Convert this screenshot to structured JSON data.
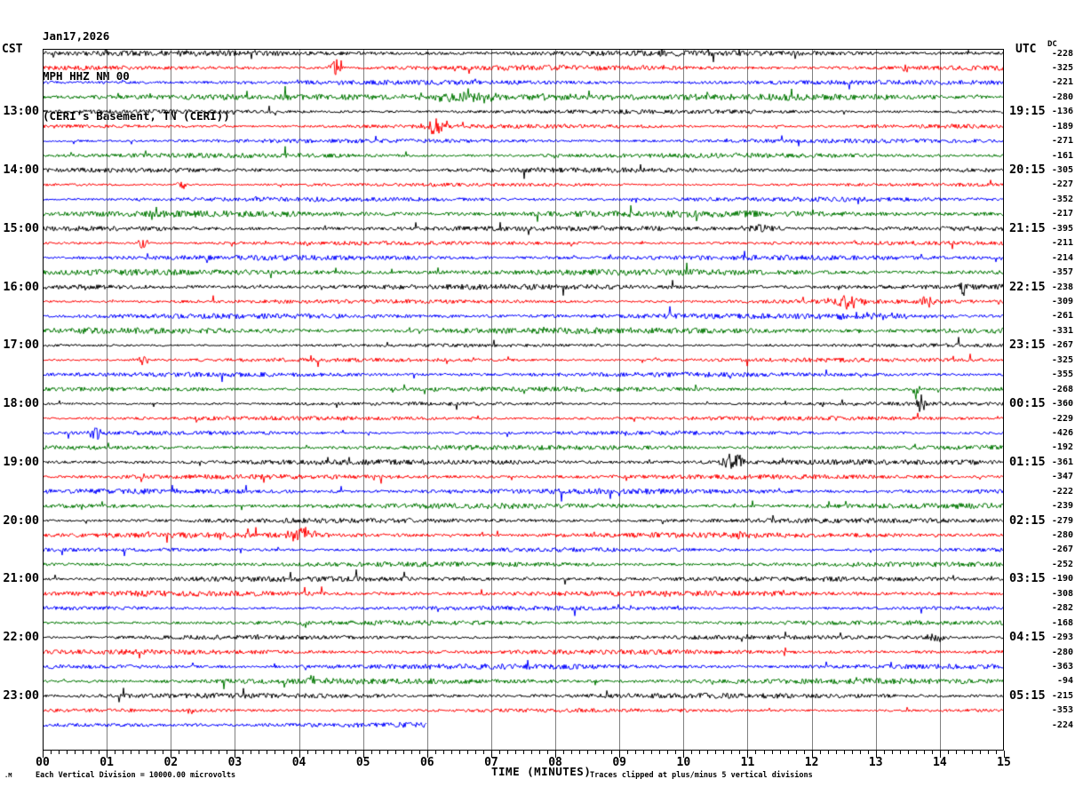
{
  "title": {
    "date": "Jan17,2026",
    "station": "MPH HHZ NM 00",
    "location": "(CERI's Basement, TN (CERI))"
  },
  "axes": {
    "left_header": "CST",
    "right_header": "UTC",
    "dc_header": "DC",
    "x_title": "TIME (MINUTES)",
    "x_ticks": [
      "00",
      "01",
      "02",
      "03",
      "04",
      "05",
      "06",
      "07",
      "08",
      "09",
      "10",
      "11",
      "12",
      "13",
      "14",
      "15"
    ]
  },
  "footer": {
    "corner_mark": ".M",
    "scale_note": "Each Vertical Division = 10000.00 microvolts",
    "clip_note": "Traces clipped at plus/minus 5 vertical divisions"
  },
  "colors": {
    "black": "#000000",
    "red": "#ff0000",
    "blue": "#0000ff",
    "green": "#007700",
    "grid": "#808080",
    "axis": "#000000"
  },
  "chart_data": {
    "type": "line",
    "title": "MPH HHZ NM 00 helicorder, CERI's Basement, TN (CERI), Jan17,2026",
    "xlabel": "TIME (MINUTES)",
    "x_range": [
      0,
      15
    ],
    "minutes_per_row": 15,
    "minor_ticks_per_minute": 8,
    "grid": "vertical minute lines",
    "note": "Continuous seismic noise traces; waveform wiggles are stochastic. Rows cycle black/red/blue/green, 15 minutes per row. CST label = row start local time, UTC label = row end time, dc = DC offset per trace.",
    "rows": [
      {
        "color": "black",
        "cst": "",
        "utc": "",
        "dc": "-228"
      },
      {
        "color": "red",
        "cst": "",
        "utc": "",
        "dc": "-325"
      },
      {
        "color": "blue",
        "cst": "",
        "utc": "",
        "dc": "-221"
      },
      {
        "color": "green",
        "cst": "",
        "utc": "",
        "dc": "-280"
      },
      {
        "color": "black",
        "cst": "13:00",
        "utc": "19:15",
        "dc": "-136"
      },
      {
        "color": "red",
        "cst": "",
        "utc": "",
        "dc": "-189"
      },
      {
        "color": "blue",
        "cst": "",
        "utc": "",
        "dc": "-271"
      },
      {
        "color": "green",
        "cst": "",
        "utc": "",
        "dc": "-161"
      },
      {
        "color": "black",
        "cst": "14:00",
        "utc": "20:15",
        "dc": "-305"
      },
      {
        "color": "red",
        "cst": "",
        "utc": "",
        "dc": "-227"
      },
      {
        "color": "blue",
        "cst": "",
        "utc": "",
        "dc": "-352"
      },
      {
        "color": "green",
        "cst": "",
        "utc": "",
        "dc": "-217"
      },
      {
        "color": "black",
        "cst": "15:00",
        "utc": "21:15",
        "dc": "-395"
      },
      {
        "color": "red",
        "cst": "",
        "utc": "",
        "dc": "-211"
      },
      {
        "color": "blue",
        "cst": "",
        "utc": "",
        "dc": "-214"
      },
      {
        "color": "green",
        "cst": "",
        "utc": "",
        "dc": "-357"
      },
      {
        "color": "black",
        "cst": "16:00",
        "utc": "22:15",
        "dc": "-238"
      },
      {
        "color": "red",
        "cst": "",
        "utc": "",
        "dc": "-309"
      },
      {
        "color": "blue",
        "cst": "",
        "utc": "",
        "dc": "-261"
      },
      {
        "color": "green",
        "cst": "",
        "utc": "",
        "dc": "-331"
      },
      {
        "color": "black",
        "cst": "17:00",
        "utc": "23:15",
        "dc": "-267"
      },
      {
        "color": "red",
        "cst": "",
        "utc": "",
        "dc": "-325"
      },
      {
        "color": "blue",
        "cst": "",
        "utc": "",
        "dc": "-355"
      },
      {
        "color": "green",
        "cst": "",
        "utc": "",
        "dc": "-268"
      },
      {
        "color": "black",
        "cst": "18:00",
        "utc": "00:15",
        "dc": "-360"
      },
      {
        "color": "red",
        "cst": "",
        "utc": "",
        "dc": "-229"
      },
      {
        "color": "blue",
        "cst": "",
        "utc": "",
        "dc": "-426"
      },
      {
        "color": "green",
        "cst": "",
        "utc": "",
        "dc": "-192"
      },
      {
        "color": "black",
        "cst": "19:00",
        "utc": "01:15",
        "dc": "-361"
      },
      {
        "color": "red",
        "cst": "",
        "utc": "",
        "dc": "-347"
      },
      {
        "color": "blue",
        "cst": "",
        "utc": "",
        "dc": "-222"
      },
      {
        "color": "green",
        "cst": "",
        "utc": "",
        "dc": "-239"
      },
      {
        "color": "black",
        "cst": "20:00",
        "utc": "02:15",
        "dc": "-279"
      },
      {
        "color": "red",
        "cst": "",
        "utc": "",
        "dc": "-280"
      },
      {
        "color": "blue",
        "cst": "",
        "utc": "",
        "dc": "-267"
      },
      {
        "color": "green",
        "cst": "",
        "utc": "",
        "dc": "-252"
      },
      {
        "color": "black",
        "cst": "21:00",
        "utc": "03:15",
        "dc": "-190"
      },
      {
        "color": "red",
        "cst": "",
        "utc": "",
        "dc": "-308"
      },
      {
        "color": "blue",
        "cst": "",
        "utc": "",
        "dc": "-282"
      },
      {
        "color": "green",
        "cst": "",
        "utc": "",
        "dc": "-168"
      },
      {
        "color": "black",
        "cst": "22:00",
        "utc": "04:15",
        "dc": "-293"
      },
      {
        "color": "red",
        "cst": "",
        "utc": "",
        "dc": "-280"
      },
      {
        "color": "blue",
        "cst": "",
        "utc": "",
        "dc": "-363"
      },
      {
        "color": "green",
        "cst": "",
        "utc": "",
        "dc": "-94"
      },
      {
        "color": "black",
        "cst": "23:00",
        "utc": "05:15",
        "dc": "-215"
      },
      {
        "color": "red",
        "cst": "",
        "utc": "",
        "dc": "-353"
      },
      {
        "color": "blue",
        "cst": "",
        "utc": "",
        "dc": "-224",
        "end_min": 6
      }
    ],
    "events": [
      {
        "row": 1,
        "min": 4.58,
        "amp": 12,
        "w": 0.1
      },
      {
        "row": 1,
        "min": 13.45,
        "amp": 5,
        "w": 0.05
      },
      {
        "row": 3,
        "min": 6.6,
        "amp": 6,
        "w": 0.45
      },
      {
        "row": 3,
        "min": 7.5,
        "amp": 3,
        "w": 1.8
      },
      {
        "row": 5,
        "min": 6.12,
        "amp": 8,
        "w": 0.15
      },
      {
        "row": 9,
        "min": 2.15,
        "amp": 6,
        "w": 0.08
      },
      {
        "row": 12,
        "min": 11.2,
        "amp": 5,
        "w": 0.3
      },
      {
        "row": 13,
        "min": 1.55,
        "amp": 6,
        "w": 0.08
      },
      {
        "row": 16,
        "min": 14.35,
        "amp": 15,
        "w": 0.04
      },
      {
        "row": 17,
        "min": 12.55,
        "amp": 8,
        "w": 0.25
      },
      {
        "row": 17,
        "min": 13.8,
        "amp": 6,
        "w": 0.15
      },
      {
        "row": 18,
        "min": 12.9,
        "amp": 4,
        "w": 0.8
      },
      {
        "row": 21,
        "min": 1.55,
        "amp": 6,
        "w": 0.1
      },
      {
        "row": 23,
        "min": 13.62,
        "amp": 13,
        "w": 0.05
      },
      {
        "row": 24,
        "min": 13.7,
        "amp": 12,
        "w": 0.06
      },
      {
        "row": 26,
        "min": 0.8,
        "amp": 8,
        "w": 0.1
      },
      {
        "row": 28,
        "min": 10.75,
        "amp": 11,
        "w": 0.18
      },
      {
        "row": 29,
        "min": 1.5,
        "amp": 5,
        "w": 0.1
      },
      {
        "row": 33,
        "min": 4.05,
        "amp": 9,
        "w": 0.2
      },
      {
        "row": 33,
        "min": 10.9,
        "amp": 6,
        "w": 0.08
      },
      {
        "row": 40,
        "min": 13.9,
        "amp": 5,
        "w": 0.2
      },
      {
        "row": 43,
        "min": 4.2,
        "amp": 7,
        "w": 0.06
      },
      {
        "row": 45,
        "min": 2.3,
        "amp": 6,
        "w": 0.06
      }
    ]
  }
}
